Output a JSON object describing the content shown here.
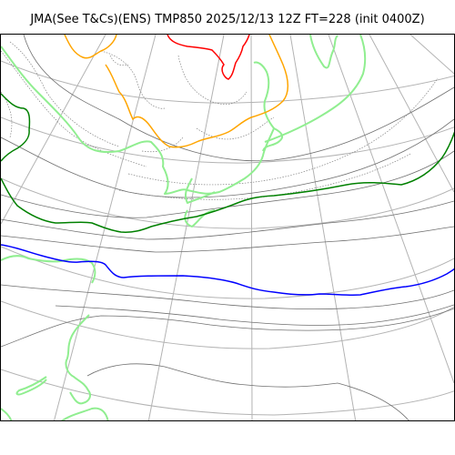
{
  "figure": {
    "title": "JMA(See T&Cs)(ENS) TMP850 2025/12/13 12Z FT=228 (init 0400Z)"
  },
  "colors": {
    "graticule": "#b3b3b3",
    "isotherm": "#707070",
    "isotherm_minor": "#808080",
    "coastline": "#90ee90",
    "isotherm_zero": "#ff0000",
    "isotherm_minus6": "#ffa500",
    "isotherm_minus12": "#008000",
    "isotherm_minus18": "#0000ff",
    "frame": "#000000"
  }
}
